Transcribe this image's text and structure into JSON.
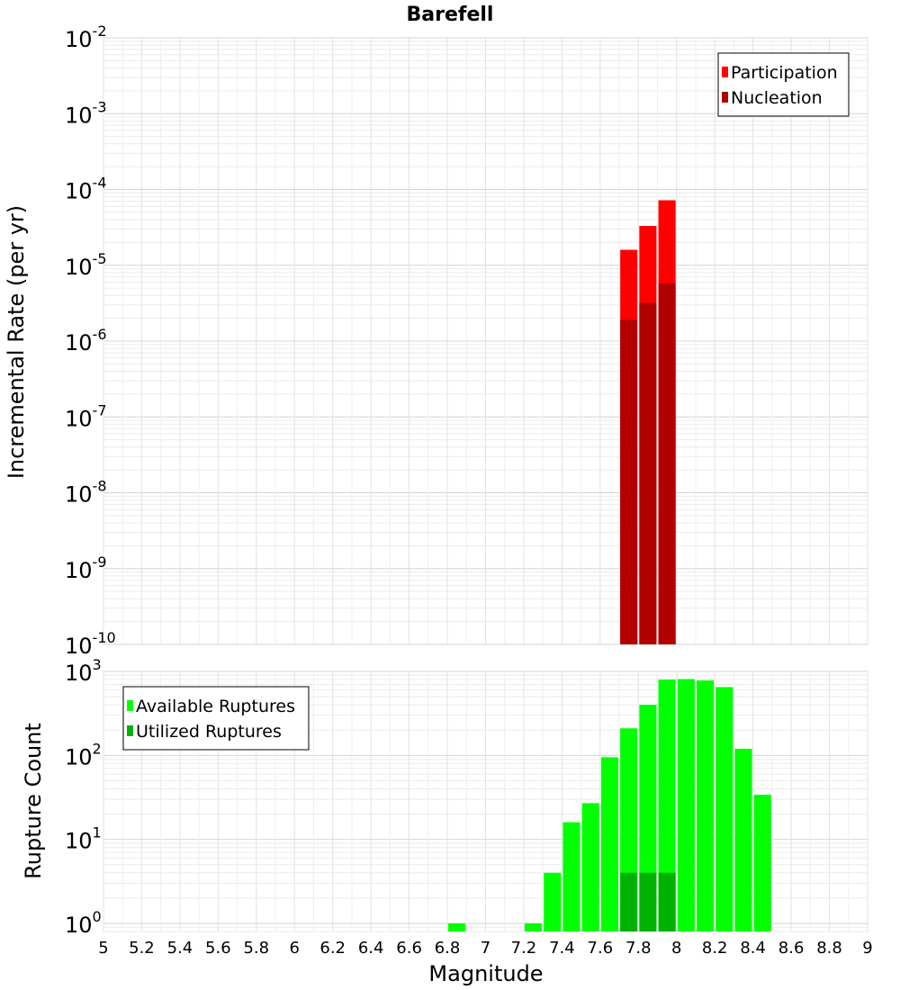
{
  "chart_data": {
    "title": "Barefell",
    "xlabel": "Magnitude",
    "xlim": [
      5,
      9
    ],
    "x_ticks": [
      "5",
      "5.2",
      "5.4",
      "5.6",
      "5.8",
      "6",
      "6.2",
      "6.4",
      "6.6",
      "6.8",
      "7",
      "7.2",
      "7.4",
      "7.6",
      "7.8",
      "8",
      "8.2",
      "8.4",
      "8.6",
      "8.8",
      "9"
    ],
    "grid": true,
    "panels": [
      {
        "type": "bar",
        "scale": "log",
        "ylabel": "Incremental Rate (per yr)",
        "ylim": [
          1e-10,
          0.01
        ],
        "y_tick_exponents": [
          -10,
          -9,
          -8,
          -7,
          -6,
          -5,
          -4,
          -3,
          -2
        ],
        "legend_position": "top-right",
        "bar_width": 0.09,
        "series": [
          {
            "name": "Participation",
            "color": "#ff0000",
            "x": [
              7.75,
              7.85,
              7.95
            ],
            "values": [
              1.6e-05,
              3.3e-05,
              7.2e-05
            ]
          },
          {
            "name": "Nucleation",
            "color": "#b20000",
            "x": [
              7.75,
              7.85,
              7.95
            ],
            "values": [
              1.9e-06,
              3.2e-06,
              5.8e-06
            ]
          }
        ]
      },
      {
        "type": "bar",
        "scale": "log",
        "ylabel": "Rupture Count",
        "ylim": [
          0.8,
          1000
        ],
        "y_tick_exponents": [
          0,
          1,
          2,
          3
        ],
        "legend_position": "top-left",
        "bar_width": 0.09,
        "series": [
          {
            "name": "Available Ruptures",
            "color": "#00ff00",
            "x": [
              6.85,
              7.25,
              7.35,
              7.45,
              7.55,
              7.65,
              7.75,
              7.85,
              7.95,
              8.05,
              8.15,
              8.25,
              8.35,
              8.45
            ],
            "values": [
              1,
              1,
              4,
              16,
              27,
              95,
              210,
              400,
              800,
              810,
              780,
              650,
              120,
              34
            ]
          },
          {
            "name": "Utilized Ruptures",
            "color": "#00b200",
            "x": [
              7.75,
              7.85,
              7.95
            ],
            "values": [
              4,
              4,
              4
            ]
          }
        ]
      }
    ]
  }
}
